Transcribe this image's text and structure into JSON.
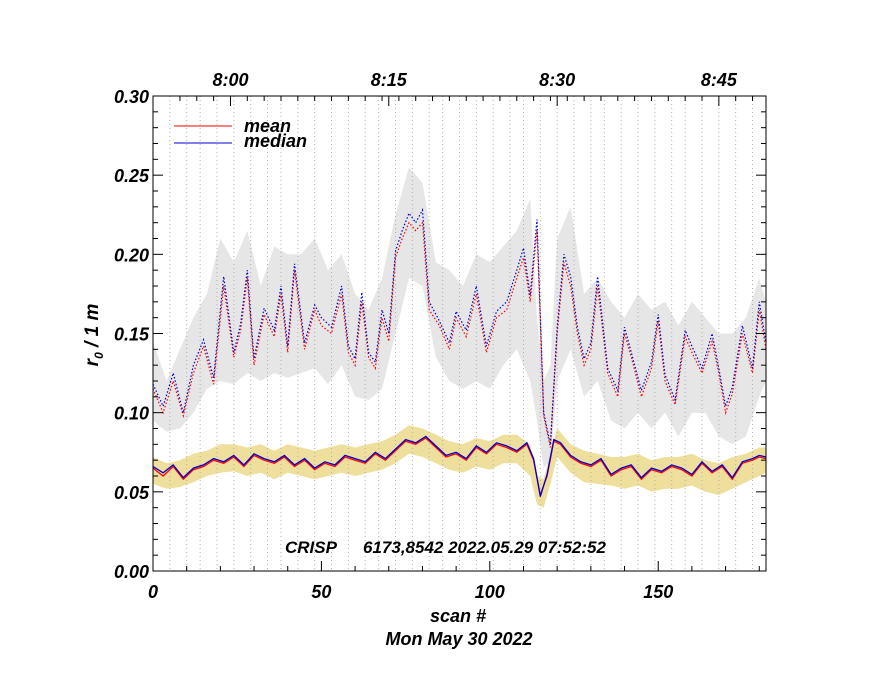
{
  "chart_data": {
    "type": "line",
    "title": "",
    "xlabel": "scan #",
    "ylabel_main": "r",
    "ylabel_sub": "0",
    "ylabel_rest": " / 1 m",
    "date_label": "Mon May 30 2022",
    "annotation_instrument": "CRISP",
    "annotation_detail": "6173,8542 2022.05.29 07:52:52",
    "xlim": [
      0,
      182
    ],
    "ylim": [
      0.0,
      0.3
    ],
    "x_ticks": [
      0,
      50,
      100,
      150
    ],
    "x_tick_labels": [
      "0",
      "50",
      "100",
      "150"
    ],
    "y_ticks": [
      0.0,
      0.05,
      0.1,
      0.15,
      0.2,
      0.25,
      0.3
    ],
    "y_tick_labels": [
      "0.00",
      "0.05",
      "0.10",
      "0.15",
      "0.20",
      "0.25",
      "0.30"
    ],
    "time_axis": {
      "labels": [
        "8:00",
        "8:15",
        "8:30",
        "8:45"
      ],
      "scan_positions": [
        23,
        70,
        120,
        168
      ]
    },
    "legend": {
      "position": "top-left",
      "entries": [
        {
          "name": "mean",
          "color": "#ff0000"
        },
        {
          "name": "median",
          "color": "#0000cc"
        }
      ]
    },
    "vertical_dotted_lines_at_scan": [
      0,
      5,
      10,
      14,
      19,
      24,
      29,
      34,
      38,
      43,
      48,
      53,
      58,
      63,
      67,
      72,
      77,
      82,
      86,
      91,
      96,
      101,
      106,
      110,
      115,
      120,
      125,
      130,
      134,
      139,
      144,
      149,
      154,
      158,
      163,
      168,
      173,
      178
    ],
    "colors": {
      "mean": "#ff0000",
      "median": "#0000cc",
      "upper_band": "#e6e6e6",
      "lower_band": "#eedf9c",
      "grid": "#b0b0b0"
    },
    "series": [
      {
        "name": "mean (upper, dotted)",
        "key": "upper",
        "style": "dotted",
        "x": [
          0,
          3,
          6,
          9,
          12,
          15,
          18,
          21,
          24,
          26,
          28,
          30,
          33,
          36,
          38,
          40,
          42,
          45,
          48,
          50,
          53,
          56,
          58,
          60,
          62,
          64,
          66,
          68,
          70,
          72,
          74,
          76,
          78,
          80,
          82,
          85,
          88,
          90,
          93,
          96,
          99,
          102,
          105,
          108,
          110,
          112,
          114,
          116,
          118,
          120,
          122,
          124,
          126,
          128,
          130,
          132,
          135,
          138,
          140,
          142,
          145,
          148,
          150,
          152,
          155,
          158,
          160,
          163,
          166,
          168,
          170,
          172,
          175,
          178,
          180,
          182
        ],
        "values": [
          0.115,
          0.1,
          0.12,
          0.098,
          0.125,
          0.142,
          0.118,
          0.18,
          0.135,
          0.152,
          0.185,
          0.13,
          0.162,
          0.148,
          0.175,
          0.138,
          0.19,
          0.14,
          0.165,
          0.155,
          0.15,
          0.175,
          0.138,
          0.13,
          0.17,
          0.135,
          0.128,
          0.16,
          0.145,
          0.198,
          0.21,
          0.22,
          0.215,
          0.22,
          0.165,
          0.155,
          0.14,
          0.16,
          0.148,
          0.175,
          0.138,
          0.16,
          0.165,
          0.185,
          0.198,
          0.17,
          0.215,
          0.098,
          0.078,
          0.15,
          0.195,
          0.18,
          0.15,
          0.13,
          0.14,
          0.18,
          0.125,
          0.11,
          0.15,
          0.135,
          0.11,
          0.128,
          0.158,
          0.12,
          0.105,
          0.148,
          0.138,
          0.125,
          0.145,
          0.125,
          0.1,
          0.112,
          0.15,
          0.125,
          0.165,
          0.14
        ]
      },
      {
        "name": "median (upper, dotted)",
        "key": "upper_median",
        "style": "dotted",
        "x": [
          0,
          3,
          6,
          9,
          12,
          15,
          18,
          21,
          24,
          26,
          28,
          30,
          33,
          36,
          38,
          40,
          42,
          45,
          48,
          50,
          53,
          56,
          58,
          60,
          62,
          64,
          66,
          68,
          70,
          72,
          74,
          76,
          78,
          80,
          82,
          85,
          88,
          90,
          93,
          96,
          99,
          102,
          105,
          108,
          110,
          112,
          114,
          116,
          118,
          120,
          122,
          124,
          126,
          128,
          130,
          132,
          135,
          138,
          140,
          142,
          145,
          148,
          150,
          152,
          155,
          158,
          160,
          163,
          166,
          168,
          170,
          172,
          175,
          178,
          180,
          182
        ],
        "values": [
          0.118,
          0.104,
          0.125,
          0.1,
          0.13,
          0.146,
          0.122,
          0.186,
          0.138,
          0.156,
          0.19,
          0.134,
          0.166,
          0.152,
          0.18,
          0.142,
          0.194,
          0.144,
          0.168,
          0.16,
          0.154,
          0.18,
          0.142,
          0.134,
          0.176,
          0.138,
          0.132,
          0.165,
          0.15,
          0.202,
          0.215,
          0.226,
          0.22,
          0.228,
          0.17,
          0.158,
          0.144,
          0.164,
          0.152,
          0.18,
          0.142,
          0.164,
          0.17,
          0.19,
          0.204,
          0.174,
          0.222,
          0.1,
          0.08,
          0.154,
          0.2,
          0.186,
          0.154,
          0.134,
          0.144,
          0.186,
          0.128,
          0.114,
          0.154,
          0.138,
          0.114,
          0.132,
          0.162,
          0.124,
          0.108,
          0.152,
          0.142,
          0.128,
          0.15,
          0.128,
          0.104,
          0.116,
          0.155,
          0.128,
          0.17,
          0.144
        ]
      },
      {
        "name": "mean",
        "key": "lower",
        "style": "solid",
        "x": [
          0,
          3,
          6,
          9,
          12,
          15,
          18,
          21,
          24,
          27,
          30,
          33,
          36,
          39,
          42,
          45,
          48,
          51,
          54,
          57,
          60,
          63,
          66,
          69,
          72,
          75,
          78,
          81,
          84,
          87,
          90,
          93,
          96,
          99,
          102,
          105,
          108,
          111,
          113,
          115,
          117,
          119,
          121,
          124,
          127,
          130,
          133,
          136,
          139,
          142,
          145,
          148,
          151,
          154,
          157,
          160,
          163,
          166,
          169,
          172,
          175,
          178,
          180,
          182
        ],
        "values": [
          0.065,
          0.06,
          0.066,
          0.058,
          0.064,
          0.066,
          0.07,
          0.068,
          0.072,
          0.066,
          0.073,
          0.07,
          0.068,
          0.072,
          0.066,
          0.07,
          0.064,
          0.068,
          0.066,
          0.072,
          0.07,
          0.068,
          0.074,
          0.07,
          0.076,
          0.082,
          0.08,
          0.084,
          0.078,
          0.072,
          0.074,
          0.07,
          0.078,
          0.074,
          0.08,
          0.078,
          0.075,
          0.08,
          0.07,
          0.048,
          0.06,
          0.082,
          0.08,
          0.072,
          0.068,
          0.066,
          0.07,
          0.06,
          0.064,
          0.066,
          0.058,
          0.064,
          0.062,
          0.066,
          0.064,
          0.06,
          0.068,
          0.062,
          0.066,
          0.058,
          0.068,
          0.07,
          0.072,
          0.071
        ]
      },
      {
        "name": "median",
        "key": "lower_median",
        "style": "solid",
        "x": [
          0,
          3,
          6,
          9,
          12,
          15,
          18,
          21,
          24,
          27,
          30,
          33,
          36,
          39,
          42,
          45,
          48,
          51,
          54,
          57,
          60,
          63,
          66,
          69,
          72,
          75,
          78,
          81,
          84,
          87,
          90,
          93,
          96,
          99,
          102,
          105,
          108,
          111,
          113,
          115,
          117,
          119,
          121,
          124,
          127,
          130,
          133,
          136,
          139,
          142,
          145,
          148,
          151,
          154,
          157,
          160,
          163,
          166,
          169,
          172,
          175,
          178,
          180,
          182
        ],
        "values": [
          0.066,
          0.062,
          0.067,
          0.059,
          0.065,
          0.067,
          0.071,
          0.069,
          0.073,
          0.067,
          0.074,
          0.071,
          0.069,
          0.073,
          0.067,
          0.071,
          0.065,
          0.069,
          0.067,
          0.073,
          0.071,
          0.069,
          0.075,
          0.071,
          0.077,
          0.083,
          0.081,
          0.085,
          0.079,
          0.073,
          0.075,
          0.071,
          0.079,
          0.075,
          0.081,
          0.079,
          0.076,
          0.081,
          0.071,
          0.047,
          0.061,
          0.083,
          0.081,
          0.073,
          0.069,
          0.067,
          0.071,
          0.061,
          0.065,
          0.067,
          0.059,
          0.065,
          0.063,
          0.067,
          0.065,
          0.061,
          0.069,
          0.063,
          0.067,
          0.059,
          0.069,
          0.071,
          0.073,
          0.072
        ]
      }
    ],
    "bands": [
      {
        "name": "upper spread",
        "key": "upper_band",
        "x": [
          0,
          4,
          8,
          12,
          16,
          20,
          24,
          28,
          32,
          36,
          40,
          44,
          48,
          52,
          56,
          60,
          64,
          68,
          72,
          76,
          80,
          84,
          88,
          92,
          96,
          100,
          104,
          108,
          112,
          114,
          116,
          118,
          120,
          124,
          128,
          132,
          136,
          140,
          144,
          148,
          152,
          156,
          160,
          164,
          168,
          172,
          176,
          180,
          182
        ],
        "low": [
          0.095,
          0.088,
          0.09,
          0.1,
          0.115,
          0.12,
          0.118,
          0.125,
          0.12,
          0.125,
          0.122,
          0.125,
          0.128,
          0.118,
          0.13,
          0.11,
          0.108,
          0.115,
          0.15,
          0.185,
          0.18,
          0.135,
          0.12,
          0.115,
          0.12,
          0.115,
          0.13,
          0.14,
          0.12,
          0.095,
          0.065,
          0.07,
          0.12,
          0.14,
          0.11,
          0.12,
          0.095,
          0.09,
          0.1,
          0.09,
          0.1,
          0.085,
          0.1,
          0.1,
          0.085,
          0.08,
          0.085,
          0.11,
          0.12
        ],
        "high": [
          0.145,
          0.12,
          0.14,
          0.16,
          0.175,
          0.21,
          0.195,
          0.215,
          0.18,
          0.205,
          0.2,
          0.2,
          0.21,
          0.19,
          0.2,
          0.175,
          0.165,
          0.185,
          0.225,
          0.255,
          0.245,
          0.195,
          0.19,
          0.18,
          0.2,
          0.195,
          0.205,
          0.215,
          0.235,
          0.16,
          0.12,
          0.13,
          0.21,
          0.23,
          0.175,
          0.185,
          0.17,
          0.16,
          0.175,
          0.165,
          0.17,
          0.155,
          0.17,
          0.16,
          0.15,
          0.15,
          0.16,
          0.185,
          0.17
        ]
      },
      {
        "name": "lower spread",
        "key": "lower_band",
        "x": [
          0,
          4,
          8,
          12,
          16,
          20,
          24,
          28,
          32,
          36,
          40,
          44,
          48,
          52,
          56,
          60,
          64,
          68,
          72,
          76,
          80,
          84,
          88,
          92,
          96,
          100,
          104,
          108,
          112,
          114,
          116,
          118,
          120,
          124,
          128,
          132,
          136,
          140,
          144,
          148,
          152,
          156,
          160,
          164,
          168,
          172,
          176,
          180,
          182
        ],
        "low": [
          0.055,
          0.052,
          0.053,
          0.056,
          0.06,
          0.062,
          0.063,
          0.06,
          0.062,
          0.058,
          0.062,
          0.06,
          0.058,
          0.06,
          0.062,
          0.06,
          0.062,
          0.064,
          0.068,
          0.074,
          0.072,
          0.068,
          0.064,
          0.062,
          0.066,
          0.064,
          0.068,
          0.068,
          0.06,
          0.042,
          0.04,
          0.055,
          0.072,
          0.062,
          0.056,
          0.055,
          0.054,
          0.052,
          0.054,
          0.05,
          0.052,
          0.052,
          0.054,
          0.05,
          0.048,
          0.052,
          0.056,
          0.06,
          0.062
        ],
        "high": [
          0.072,
          0.068,
          0.07,
          0.074,
          0.076,
          0.08,
          0.08,
          0.078,
          0.08,
          0.076,
          0.08,
          0.078,
          0.076,
          0.078,
          0.08,
          0.078,
          0.08,
          0.082,
          0.086,
          0.092,
          0.09,
          0.086,
          0.082,
          0.08,
          0.084,
          0.082,
          0.086,
          0.086,
          0.08,
          0.06,
          0.058,
          0.075,
          0.09,
          0.08,
          0.076,
          0.074,
          0.072,
          0.072,
          0.074,
          0.07,
          0.072,
          0.072,
          0.074,
          0.07,
          0.068,
          0.072,
          0.074,
          0.078,
          0.078
        ]
      }
    ]
  }
}
